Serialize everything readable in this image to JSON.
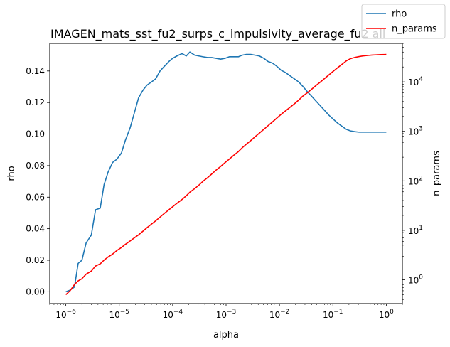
{
  "chart_data": {
    "type": "line",
    "title": "IMAGEN_mats_sst_fu2_surps_c_impulsivity_average_fu2 all",
    "xlabel": "alpha",
    "ylabel": "rho",
    "y2label": "n_params",
    "xscale": "log",
    "xlim": [
      5e-07,
      2.0
    ],
    "ylim": [
      -0.0075,
      0.1575
    ],
    "y2scale": "log",
    "y2lim": [
      0.33,
      60000
    ],
    "x_ticks": [
      1e-06,
      1e-05,
      0.0001,
      0.001,
      0.01,
      0.1,
      1
    ],
    "x_tick_labels": [
      {
        "base": "10",
        "exp": "−6"
      },
      {
        "base": "10",
        "exp": "−5"
      },
      {
        "base": "10",
        "exp": "−4"
      },
      {
        "base": "10",
        "exp": "−3"
      },
      {
        "base": "10",
        "exp": "−2"
      },
      {
        "base": "10",
        "exp": "−1"
      },
      {
        "base": "10",
        "exp": "0"
      }
    ],
    "y_ticks": [
      0.0,
      0.02,
      0.04,
      0.06,
      0.08,
      0.1,
      0.12,
      0.14
    ],
    "y_tick_labels": [
      "0.00",
      "0.02",
      "0.04",
      "0.06",
      "0.08",
      "0.10",
      "0.12",
      "0.14"
    ],
    "y2_ticks": [
      1,
      10,
      100,
      1000,
      10000
    ],
    "y2_tick_labels": [
      {
        "base": "10",
        "exp": "0"
      },
      {
        "base": "10",
        "exp": "1"
      },
      {
        "base": "10",
        "exp": "2"
      },
      {
        "base": "10",
        "exp": "3"
      },
      {
        "base": "10",
        "exp": "4"
      }
    ],
    "grid": false,
    "legend": {
      "placement": "top-right",
      "entries": [
        "rho",
        "n_params"
      ]
    },
    "series": [
      {
        "name": "rho",
        "axis": "left",
        "color": "#1f77b4",
        "x": [
          1e-06,
          1.2e-06,
          1.45e-06,
          1.7e-06,
          2e-06,
          2.4e-06,
          3e-06,
          3.6e-06,
          4.4e-06,
          5.2e-06,
          6.2e-06,
          7.5e-06,
          9e-06,
          1.1e-05,
          1.3e-05,
          1.6e-05,
          1.9e-05,
          2.3e-05,
          2.8e-05,
          3.3e-05,
          4e-05,
          4.8e-05,
          5.8e-05,
          7e-05,
          8.5e-05,
          0.0001,
          0.00012,
          0.00015,
          0.00018,
          0.00021,
          0.00026,
          0.00031,
          0.00037,
          0.00045,
          0.00054,
          0.00065,
          0.00079,
          0.00095,
          0.00115,
          0.0014,
          0.0017,
          0.002,
          0.0024,
          0.0029,
          0.0035,
          0.0042,
          0.0051,
          0.0061,
          0.0074,
          0.0089,
          0.0107,
          0.013,
          0.0157,
          0.019,
          0.023,
          0.027,
          0.033,
          0.04,
          0.048,
          0.058,
          0.07,
          0.084,
          0.101,
          0.122,
          0.147,
          0.178,
          0.214,
          0.258,
          0.31,
          0.375,
          0.45,
          0.54,
          0.65,
          0.79,
          0.95,
          1.0
        ],
        "values": [
          0.0,
          0.001,
          0.003,
          0.018,
          0.02,
          0.031,
          0.036,
          0.052,
          0.053,
          0.068,
          0.076,
          0.082,
          0.084,
          0.088,
          0.096,
          0.104,
          0.113,
          0.123,
          0.128,
          0.131,
          0.133,
          0.135,
          0.14,
          0.143,
          0.146,
          0.148,
          0.1495,
          0.151,
          0.1495,
          0.152,
          0.15,
          0.1495,
          0.149,
          0.1485,
          0.1485,
          0.148,
          0.1475,
          0.148,
          0.149,
          0.149,
          0.149,
          0.15,
          0.1505,
          0.1505,
          0.15,
          0.1495,
          0.148,
          0.146,
          0.145,
          0.143,
          0.1405,
          0.139,
          0.137,
          0.135,
          0.133,
          0.1305,
          0.127,
          0.124,
          0.121,
          0.118,
          0.115,
          0.112,
          0.1095,
          0.107,
          0.105,
          0.103,
          0.102,
          0.1015,
          0.1012,
          0.1012,
          0.1012,
          0.1012,
          0.1012,
          0.1012,
          0.1012,
          0.1012
        ]
      },
      {
        "name": "n_params",
        "axis": "right",
        "color": "#ff0000",
        "x": [
          1e-06,
          1.2e-06,
          1.45e-06,
          1.7e-06,
          2e-06,
          2.4e-06,
          3e-06,
          3.6e-06,
          4.4e-06,
          5.2e-06,
          6.2e-06,
          7.5e-06,
          9e-06,
          1.1e-05,
          1.3e-05,
          1.6e-05,
          1.9e-05,
          2.3e-05,
          2.8e-05,
          3.3e-05,
          4e-05,
          4.8e-05,
          5.8e-05,
          7e-05,
          8.5e-05,
          0.0001,
          0.00012,
          0.00015,
          0.00018,
          0.00021,
          0.00026,
          0.00031,
          0.00037,
          0.00045,
          0.00054,
          0.00065,
          0.00079,
          0.00095,
          0.00115,
          0.0014,
          0.0017,
          0.002,
          0.0024,
          0.0029,
          0.0035,
          0.0042,
          0.0051,
          0.0061,
          0.0074,
          0.0089,
          0.0107,
          0.013,
          0.0157,
          0.019,
          0.023,
          0.027,
          0.033,
          0.04,
          0.048,
          0.058,
          0.07,
          0.084,
          0.101,
          0.122,
          0.147,
          0.178,
          0.214,
          0.258,
          0.31,
          0.375,
          0.45,
          0.54,
          0.65,
          0.79,
          0.95,
          1.0
        ],
        "values": [
          0.5,
          0.6,
          0.8,
          0.95,
          1.05,
          1.3,
          1.5,
          1.9,
          2.1,
          2.5,
          2.9,
          3.3,
          3.9,
          4.5,
          5.2,
          6.1,
          7.0,
          8.1,
          9.7,
          11.3,
          13.3,
          15.5,
          18.5,
          22,
          26,
          30,
          35,
          42,
          50,
          59,
          70,
          82,
          98,
          116,
          138,
          165,
          195,
          232,
          275,
          330,
          390,
          465,
          550,
          650,
          780,
          920,
          1100,
          1300,
          1550,
          1850,
          2200,
          2600,
          3050,
          3600,
          4300,
          5100,
          6000,
          7100,
          8400,
          9900,
          11700,
          13800,
          16300,
          19200,
          22500,
          26500,
          29500,
          31200,
          32500,
          33500,
          34200,
          34800,
          35200,
          35500,
          35700,
          35800
        ]
      }
    ]
  }
}
